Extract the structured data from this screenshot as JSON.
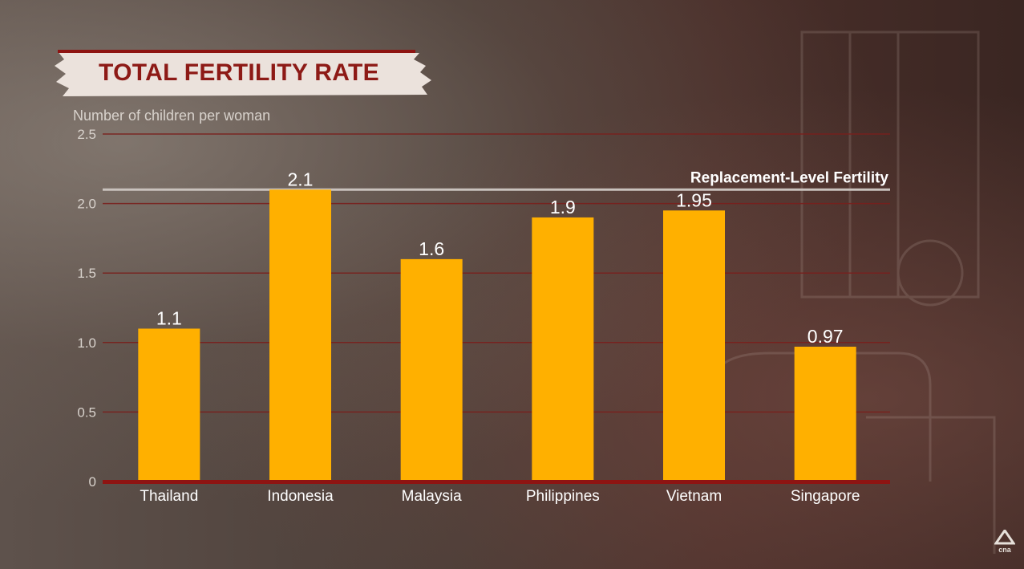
{
  "chart_data": {
    "type": "bar",
    "title": "TOTAL FERTILITY RATE",
    "ylabel": "Number of children per woman",
    "categories": [
      "Thailand",
      "Indonesia",
      "Malaysia",
      "Philippines",
      "Vietnam",
      "Singapore"
    ],
    "values": [
      1.1,
      2.1,
      1.6,
      1.9,
      1.95,
      0.97
    ],
    "value_labels": [
      "1.1",
      "2.1",
      "1.6",
      "1.9",
      "1.95",
      "0.97"
    ],
    "ylim": [
      0,
      2.5
    ],
    "yticks": [
      0,
      0.5,
      1.0,
      1.5,
      2.0,
      2.5
    ],
    "ytick_labels": [
      "0",
      "0.5",
      "1.0",
      "1.5",
      "2.0",
      "2.5"
    ],
    "reference_line": {
      "value": 2.1,
      "label": "Replacement-Level Fertility"
    },
    "grid": true,
    "colors": {
      "bar": "#ffb000",
      "gridline": "#7a1f1c",
      "baseline": "#8e1412",
      "reference": "#c9c2bd",
      "title": "#8d1a16"
    }
  },
  "logo": {
    "icon": "cna-logo-icon",
    "text": "cna"
  }
}
